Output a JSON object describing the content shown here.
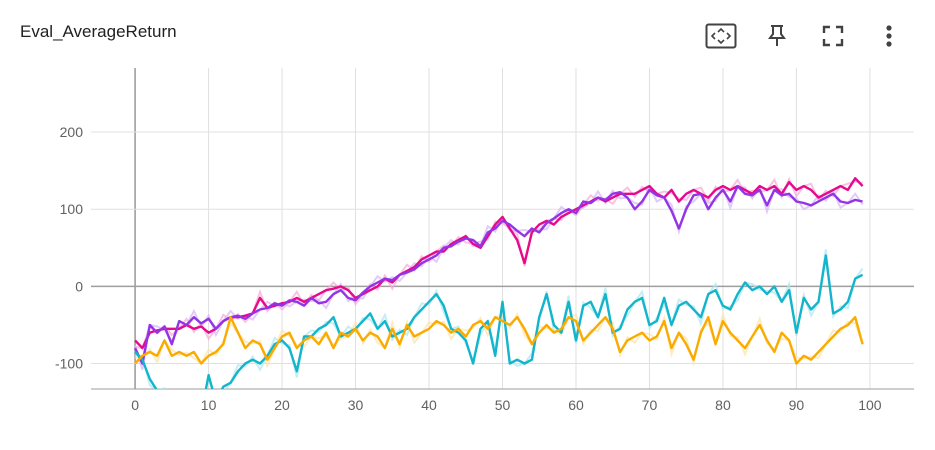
{
  "header": {
    "title": "Eval_AverageReturn",
    "icons": [
      "fit-domain-icon",
      "pin-icon",
      "fullscreen-icon",
      "more-vert-icon"
    ]
  },
  "chart_data": {
    "type": "line",
    "title": "Eval_AverageReturn",
    "xlabel": "",
    "ylabel": "",
    "xlim": [
      -6,
      106
    ],
    "ylim": [
      -133,
      283
    ],
    "x_ticks": [
      0,
      10,
      20,
      30,
      40,
      50,
      60,
      70,
      80,
      90,
      100
    ],
    "y_ticks": [
      -100,
      0,
      100,
      200
    ],
    "grid": true,
    "smoothed": true,
    "series": [
      {
        "color": "#e7098c",
        "raw_color": "#f7a8d6",
        "x": [
          0,
          1,
          2,
          3,
          4,
          5,
          6,
          7,
          8,
          9,
          10,
          11,
          12,
          13,
          14,
          15,
          16,
          17,
          18,
          19,
          20,
          21,
          22,
          23,
          24,
          25,
          26,
          27,
          28,
          29,
          30,
          31,
          32,
          33,
          34,
          35,
          36,
          37,
          38,
          39,
          40,
          41,
          42,
          43,
          44,
          45,
          46,
          47,
          48,
          49,
          50,
          51,
          52,
          53,
          54,
          55,
          56,
          57,
          58,
          59,
          60,
          61,
          62,
          63,
          64,
          65,
          66,
          67,
          68,
          69,
          70,
          71,
          72,
          73,
          74,
          75,
          76,
          77,
          78,
          79,
          80,
          81,
          82,
          83,
          84,
          85,
          86,
          87,
          88,
          89,
          90,
          91,
          92,
          93,
          94,
          95,
          96,
          97,
          98,
          99
        ],
        "y": [
          -70,
          -80,
          -60,
          -57,
          -55,
          -55,
          -55,
          -50,
          -55,
          -52,
          -60,
          -55,
          -45,
          -40,
          -40,
          -38,
          -35,
          -15,
          -28,
          -25,
          -22,
          -20,
          -15,
          -20,
          -15,
          -10,
          -5,
          -3,
          0,
          -5,
          -15,
          -10,
          -5,
          0,
          10,
          5,
          15,
          20,
          25,
          35,
          40,
          45,
          45,
          55,
          60,
          65,
          55,
          50,
          65,
          80,
          90,
          75,
          60,
          30,
          70,
          80,
          85,
          80,
          90,
          95,
          100,
          105,
          110,
          115,
          110,
          115,
          120,
          120,
          120,
          125,
          130,
          120,
          115,
          125,
          110,
          120,
          125,
          120,
          115,
          125,
          130,
          125,
          130,
          125,
          120,
          130,
          125,
          130,
          120,
          135,
          125,
          130,
          125,
          115,
          120,
          125,
          130,
          125,
          140,
          130
        ]
      },
      {
        "color": "#9334e6",
        "raw_color": "#d6b4f7",
        "x": [
          0,
          1,
          2,
          3,
          4,
          5,
          6,
          7,
          8,
          9,
          10,
          11,
          12,
          13,
          14,
          15,
          16,
          17,
          18,
          19,
          20,
          21,
          22,
          23,
          24,
          25,
          26,
          27,
          28,
          29,
          30,
          31,
          32,
          33,
          34,
          35,
          36,
          37,
          38,
          39,
          40,
          41,
          42,
          43,
          44,
          45,
          46,
          47,
          48,
          49,
          50,
          51,
          52,
          53,
          54,
          55,
          56,
          57,
          58,
          59,
          60,
          61,
          62,
          63,
          64,
          65,
          66,
          67,
          68,
          69,
          70,
          71,
          72,
          73,
          74,
          75,
          76,
          77,
          78,
          79,
          80,
          81,
          82,
          83,
          84,
          85,
          86,
          87,
          88,
          89,
          90,
          91,
          92,
          93,
          94,
          95,
          96,
          97,
          98,
          99
        ],
        "y": [
          -80,
          -100,
          -50,
          -60,
          -52,
          -75,
          -45,
          -50,
          -40,
          -48,
          -42,
          -55,
          -45,
          -40,
          -38,
          -42,
          -35,
          -30,
          -28,
          -22,
          -25,
          -18,
          -20,
          -25,
          -15,
          -22,
          -20,
          -10,
          -5,
          -15,
          -18,
          -8,
          0,
          5,
          10,
          8,
          15,
          18,
          22,
          30,
          35,
          40,
          50,
          52,
          58,
          62,
          60,
          52,
          70,
          75,
          85,
          80,
          72,
          65,
          75,
          70,
          82,
          88,
          95,
          100,
          95,
          110,
          108,
          115,
          112,
          120,
          122,
          115,
          100,
          110,
          125,
          118,
          115,
          98,
          75,
          100,
          118,
          120,
          100,
          115,
          125,
          110,
          130,
          120,
          118,
          125,
          105,
          125,
          118,
          120,
          110,
          108,
          105,
          110,
          115,
          120,
          110,
          108,
          112,
          110
        ]
      },
      {
        "color": "#12b5cb",
        "raw_color": "#a9e7ef",
        "x": [
          0,
          1,
          2,
          3,
          4,
          5,
          6,
          7,
          8,
          9,
          10,
          11,
          12,
          13,
          14,
          15,
          16,
          17,
          18,
          19,
          20,
          21,
          22,
          23,
          24,
          25,
          26,
          27,
          28,
          29,
          30,
          31,
          32,
          33,
          34,
          35,
          36,
          37,
          38,
          39,
          40,
          41,
          42,
          43,
          44,
          45,
          46,
          47,
          48,
          49,
          50,
          51,
          52,
          53,
          54,
          55,
          56,
          57,
          58,
          59,
          60,
          61,
          62,
          63,
          64,
          65,
          66,
          67,
          68,
          69,
          70,
          71,
          72,
          73,
          74,
          75,
          76,
          77,
          78,
          79,
          80,
          81,
          82,
          83,
          84,
          85,
          86,
          87,
          88,
          89,
          90,
          91,
          92,
          93,
          94,
          95,
          96,
          97,
          98,
          99
        ],
        "y": [
          -85,
          -95,
          -120,
          -135,
          -140,
          -145,
          -150,
          -155,
          -160,
          -165,
          -115,
          -150,
          -130,
          -125,
          -110,
          -100,
          -95,
          -100,
          -90,
          -75,
          -70,
          -80,
          -110,
          -65,
          -65,
          -55,
          -50,
          -40,
          -65,
          -60,
          -55,
          -45,
          -35,
          -55,
          -45,
          -65,
          -60,
          -55,
          -40,
          -30,
          -20,
          -10,
          -25,
          -55,
          -60,
          -70,
          -100,
          -55,
          -45,
          -90,
          -20,
          -100,
          -95,
          -100,
          -95,
          -40,
          -10,
          -50,
          -60,
          -20,
          -70,
          -25,
          -20,
          -40,
          -10,
          -60,
          -55,
          -30,
          -20,
          -15,
          -50,
          -45,
          -15,
          -50,
          -25,
          -20,
          -30,
          -40,
          -10,
          -5,
          -25,
          -30,
          -10,
          5,
          -5,
          0,
          -10,
          0,
          -20,
          -5,
          -60,
          -15,
          -30,
          -20,
          40,
          -35,
          -30,
          -20,
          10,
          15
        ]
      },
      {
        "color": "#f9ab00",
        "raw_color": "#fde3a7",
        "x": [
          0,
          1,
          2,
          3,
          4,
          5,
          6,
          7,
          8,
          9,
          10,
          11,
          12,
          13,
          14,
          15,
          16,
          17,
          18,
          19,
          20,
          21,
          22,
          23,
          24,
          25,
          26,
          27,
          28,
          29,
          30,
          31,
          32,
          33,
          34,
          35,
          36,
          37,
          38,
          39,
          40,
          41,
          42,
          43,
          44,
          45,
          46,
          47,
          48,
          49,
          50,
          51,
          52,
          53,
          54,
          55,
          56,
          57,
          58,
          59,
          60,
          61,
          62,
          63,
          64,
          65,
          66,
          67,
          68,
          69,
          70,
          71,
          72,
          73,
          74,
          75,
          76,
          77,
          78,
          79,
          80,
          81,
          82,
          83,
          84,
          85,
          86,
          87,
          88,
          89,
          90,
          91,
          92,
          93,
          94,
          95,
          96,
          97,
          98,
          99
        ],
        "y": [
          -100,
          -90,
          -85,
          -90,
          -70,
          -90,
          -85,
          -90,
          -85,
          -100,
          -90,
          -85,
          -75,
          -40,
          -60,
          -80,
          -70,
          -75,
          -95,
          -80,
          -65,
          -60,
          -80,
          -70,
          -65,
          -75,
          -60,
          -80,
          -60,
          -65,
          -55,
          -70,
          -60,
          -65,
          -80,
          -55,
          -75,
          -50,
          -65,
          -60,
          -55,
          -45,
          -50,
          -60,
          -55,
          -65,
          -50,
          -45,
          -55,
          -40,
          -45,
          -50,
          -40,
          -55,
          -75,
          -60,
          -50,
          -60,
          -55,
          -40,
          -45,
          -70,
          -60,
          -50,
          -40,
          -55,
          -85,
          -70,
          -65,
          -60,
          -70,
          -65,
          -45,
          -80,
          -60,
          -75,
          -95,
          -60,
          -40,
          -75,
          -45,
          -60,
          -70,
          -80,
          -65,
          -50,
          -70,
          -85,
          -60,
          -70,
          -100,
          -90,
          -95,
          -85,
          -75,
          -65,
          -55,
          -50,
          -40,
          -75
        ]
      }
    ]
  }
}
